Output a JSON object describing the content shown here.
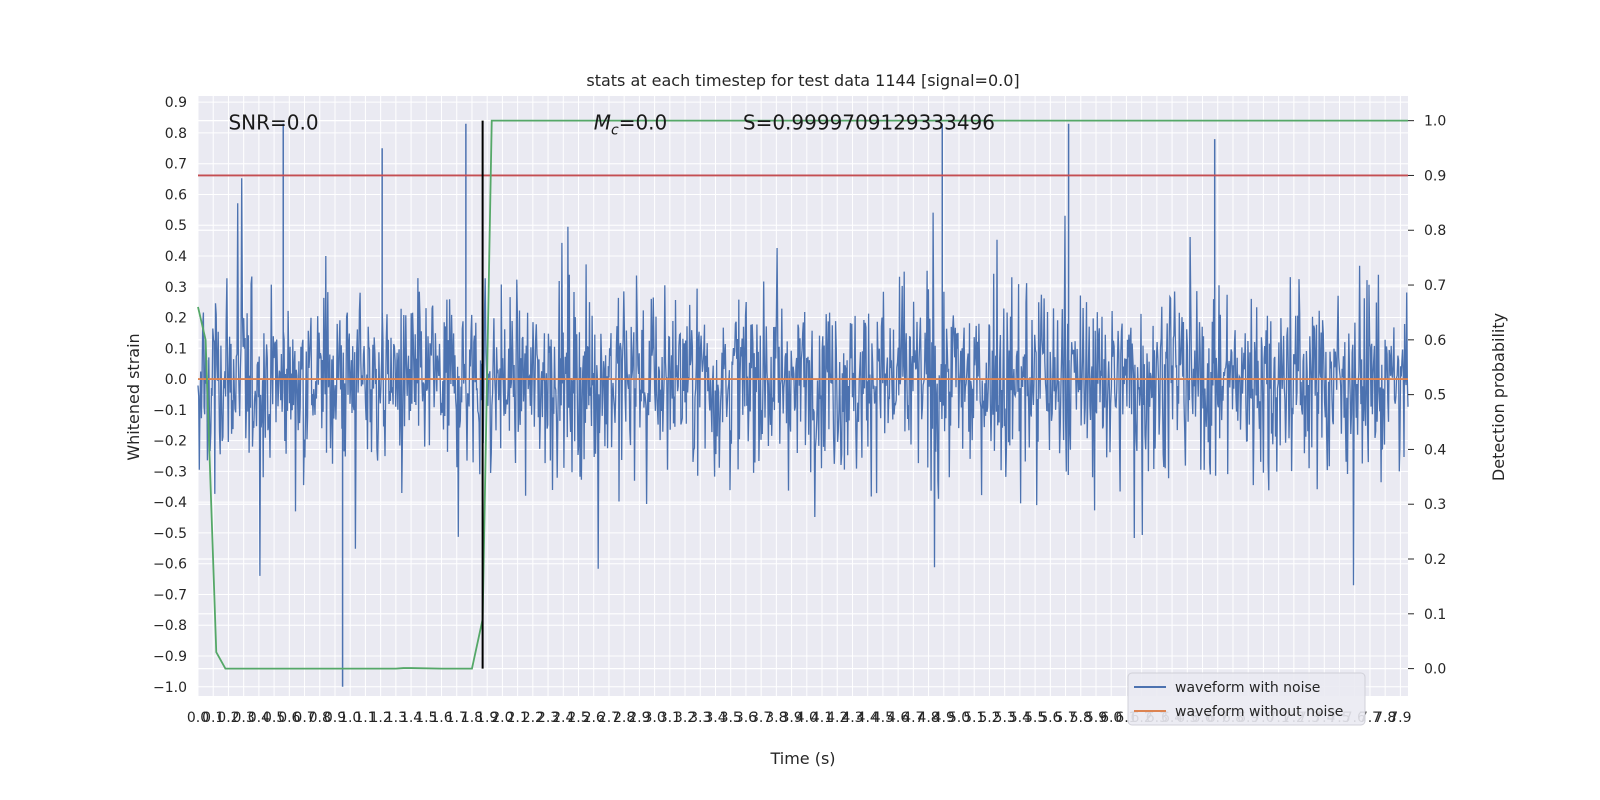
{
  "chart_data": {
    "type": "line",
    "title": "stats at each timestep for test data 1144 [signal=0.0]",
    "xlabel": "Time (s)",
    "ylabel_left": "Whitened strain",
    "ylabel_right": "Detection probability",
    "xlim": [
      0.0,
      7.95
    ],
    "ylim_left": [
      -1.03,
      0.92
    ],
    "ylim_right": [
      -0.05,
      1.045
    ],
    "x_ticks": [
      "0.0",
      "0.1",
      "0.2",
      "0.3",
      "0.4",
      "0.5",
      "0.6",
      "0.7",
      "0.8",
      "0.9",
      "1.0",
      "1.1",
      "1.2",
      "1.3",
      "1.4",
      "1.5",
      "1.6",
      "1.7",
      "1.8",
      "1.9",
      "2.0",
      "2.1",
      "2.2",
      "2.3",
      "2.4",
      "2.5",
      "2.6",
      "2.7",
      "2.8",
      "2.9",
      "3.0",
      "3.1",
      "3.2",
      "3.3",
      "3.4",
      "3.5",
      "3.6",
      "3.7",
      "3.8",
      "3.9",
      "4.0",
      "4.1",
      "4.2",
      "4.3",
      "4.4",
      "4.5",
      "4.6",
      "4.7",
      "4.8",
      "4.9",
      "5.0",
      "5.1",
      "5.2",
      "5.3",
      "5.4",
      "5.5",
      "5.6",
      "5.7",
      "5.8",
      "5.9",
      "6.0",
      "6.1",
      "6.2",
      "6.3",
      "6.4",
      "6.5",
      "6.6",
      "6.7",
      "6.8",
      "6.9",
      "7.0",
      "7.1",
      "7.2",
      "7.3",
      "7.4",
      "7.5",
      "7.6",
      "7.7",
      "7.8",
      "7.9"
    ],
    "y_ticks_left": [
      "0.9",
      "0.8",
      "0.7",
      "0.6",
      "0.5",
      "0.4",
      "0.3",
      "0.2",
      "0.1",
      "0.0",
      "-0.1",
      "-0.2",
      "-0.3",
      "-0.4",
      "-0.5",
      "-0.6",
      "-0.7",
      "-0.8",
      "-0.9",
      "-1.0"
    ],
    "y_ticks_right": [
      "1.0",
      "0.9",
      "0.8",
      "0.7",
      "0.6",
      "0.5",
      "0.4",
      "0.3",
      "0.2",
      "0.1",
      "0.0"
    ],
    "annotations": [
      {
        "text": "SNR=0.0",
        "x": 0.2,
        "y": 0.83
      },
      {
        "text_prefix": "M",
        "text_sub": "c",
        "text_suffix": "=0.0",
        "x": 2.6,
        "y": 0.83
      },
      {
        "text": "S=0.9999709129333496",
        "x": 3.58,
        "y": 0.83
      }
    ],
    "series": [
      {
        "name": "waveform with noise",
        "axis": "left",
        "color": "#4c72b0",
        "kind": "noise",
        "typical_amplitude": 0.28,
        "peak_max": 0.83,
        "peak_min": -1.0,
        "x_range": [
          0.0,
          7.95
        ]
      },
      {
        "name": "waveform without noise",
        "axis": "left",
        "color": "#dd8452",
        "x": [
          0.0,
          7.95
        ],
        "y": [
          0.0,
          0.0
        ]
      },
      {
        "axis": "right",
        "color": "#55a868",
        "x": [
          0.0,
          0.05,
          0.12,
          0.18,
          0.5,
          1.0,
          1.3,
          1.35,
          1.4,
          1.6,
          1.8,
          1.87,
          1.93,
          7.95
        ],
        "y": [
          0.66,
          0.6,
          0.03,
          0.0,
          0.0,
          0.0,
          0.0,
          0.001,
          0.001,
          0.0,
          0.0,
          0.09,
          1.0,
          1.0
        ]
      }
    ],
    "threshold_line": {
      "axis": "right",
      "y": 0.9,
      "color": "#c44e52"
    },
    "marker_line": {
      "x": 1.87,
      "color": "#000000"
    },
    "legend": {
      "placement": "lower-right",
      "entries": [
        {
          "label": "waveform with noise",
          "color": "#4c72b0"
        },
        {
          "label": "waveform without noise",
          "color": "#dd8452"
        }
      ]
    },
    "grid": true,
    "background": "#eaeaf2"
  }
}
